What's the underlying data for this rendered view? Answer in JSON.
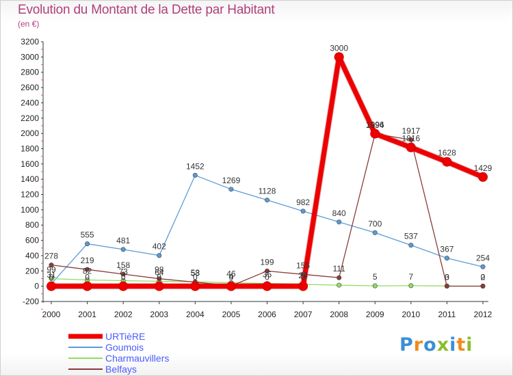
{
  "title": "Evolution du Montant de la Dette par Habitant",
  "unit": "(en €)",
  "logo": {
    "text": "Proxiti",
    "colors": [
      "#3b8fd6",
      "#f08a1c",
      "#3b8fd6",
      "#8bbd2a",
      "#3b8fd6",
      "#f08a1c",
      "#8bbd2a"
    ]
  },
  "chart_data": {
    "type": "line",
    "title": "Evolution du Montant de la Dette par Habitant",
    "ylabel": "(en €)",
    "xlabel": "",
    "x": [
      "2000",
      "2001",
      "2002",
      "2003",
      "2004",
      "2005",
      "2006",
      "2007",
      "2008",
      "2009",
      "2010",
      "2011",
      "2012"
    ],
    "ylim": [
      -200,
      3200
    ],
    "yticks": [
      -200,
      0,
      200,
      400,
      600,
      800,
      1000,
      1200,
      1400,
      1600,
      1800,
      2000,
      2200,
      2400,
      2600,
      2800,
      3000,
      3200
    ],
    "grid": false,
    "legend_position": "bottom-left",
    "series": [
      {
        "name": "URTièRE",
        "color": "#ee0000",
        "width": "thick",
        "values": [
          0,
          0,
          0,
          0,
          0,
          0,
          0,
          0,
          3000,
          1996,
          1816,
          1628,
          1429
        ],
        "labels": [
          "0",
          "0",
          "0",
          "0",
          "0",
          "0",
          "0",
          "0",
          "3000",
          "1996",
          "1816",
          "1628",
          "1429"
        ]
      },
      {
        "name": "Goumois",
        "color": "#5b9bd5",
        "width": "thin",
        "values": [
          31,
          555,
          481,
          402,
          1452,
          1269,
          1128,
          982,
          840,
          700,
          537,
          367,
          254
        ],
        "labels": [
          "31",
          "555",
          "481",
          "402",
          "1452",
          "1269",
          "1128",
          "982",
          "840",
          "700",
          "537",
          "367",
          "254"
        ]
      },
      {
        "name": "Charmauvillers",
        "color": "#90dd60",
        "width": "thin",
        "values": [
          99,
          82,
          73,
          64,
          58,
          46,
          35,
          24,
          14,
          5,
          7,
          3,
          2
        ],
        "labels": [
          "99",
          "82",
          "73",
          "64",
          "58",
          "46",
          "35",
          "24",
          "",
          "5",
          "7",
          "3",
          "2"
        ]
      },
      {
        "name": "Belfays",
        "color": "#8b3a3a",
        "width": "thin",
        "values": [
          278,
          219,
          158,
          98,
          53,
          4,
          199,
          155,
          111,
          1994,
          1917,
          0,
          0
        ],
        "labels": [
          "278",
          "219",
          "158",
          "98",
          "53",
          "4",
          "199",
          "155",
          "111",
          "1994",
          "1917",
          "0",
          "0"
        ]
      }
    ]
  }
}
